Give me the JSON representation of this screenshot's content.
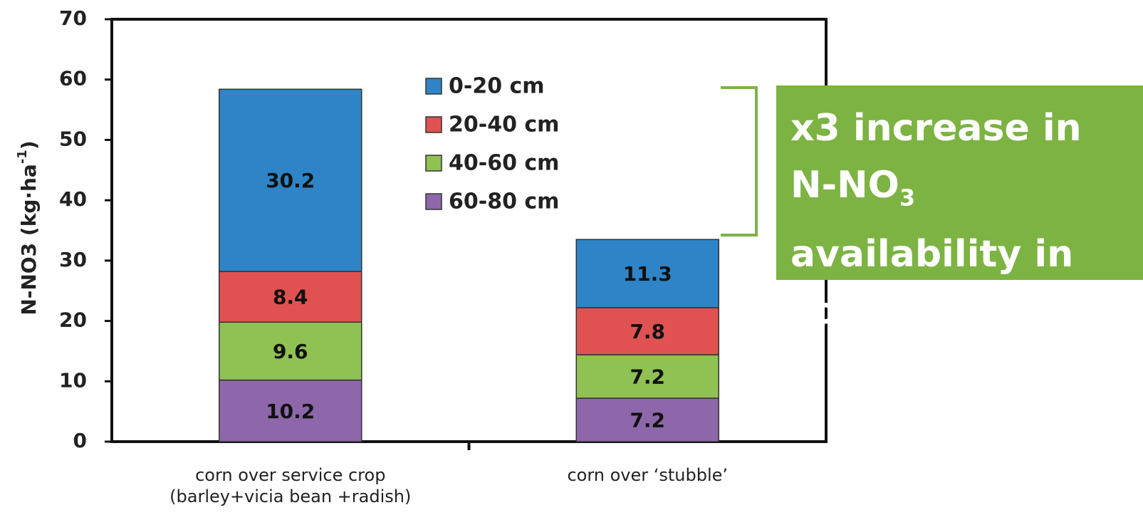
{
  "chart_data": {
    "type": "stacked_bar",
    "ylabel": [
      "N-NO3 (kg·ha",
      "-1",
      ")"
    ],
    "categories": [
      "corn over service crop\n(barley+vicia bean +radish)",
      "corn over ‘stubble’"
    ],
    "series": [
      {
        "name": "0-20 cm",
        "color": "#2e84c6",
        "values": [
          30.2,
          11.3
        ]
      },
      {
        "name": "20-40 cm",
        "color": "#e05252",
        "values": [
          8.4,
          7.8
        ]
      },
      {
        "name": "40-60 cm",
        "color": "#8fc153",
        "values": [
          9.6,
          7.2
        ]
      },
      {
        "name": "60-80 cm",
        "color": "#8e67ab",
        "values": [
          10.2,
          7.2
        ]
      }
    ],
    "ylim": [
      0,
      70
    ],
    "yticks": [
      0,
      10,
      20,
      30,
      40,
      50,
      60,
      70
    ],
    "annotation": [
      "x3 increase in N-NO",
      "3",
      " availability in soil"
    ]
  }
}
